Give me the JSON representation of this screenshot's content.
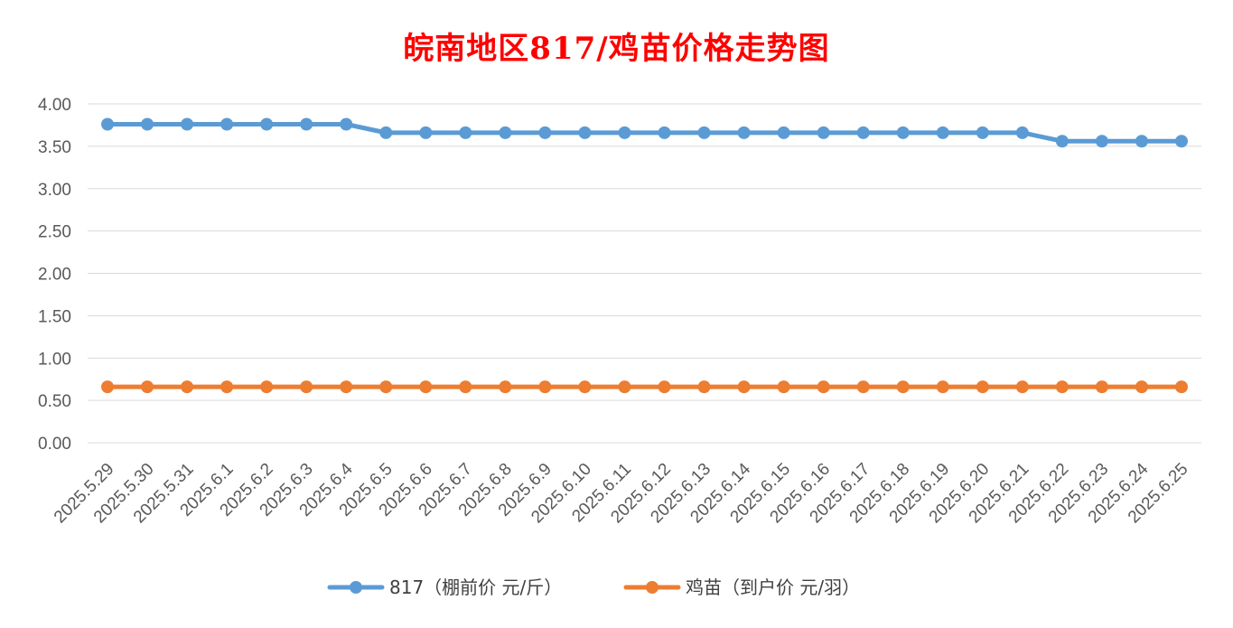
{
  "chart_data": {
    "type": "line",
    "title": "皖南地区817/鸡苗价格走势图",
    "title_color": "#FF0000",
    "categories": [
      "2025.5.29",
      "2025.5.30",
      "2025.5.31",
      "2025.6.1",
      "2025.6.2",
      "2025.6.3",
      "2025.6.4",
      "2025.6.5",
      "2025.6.6",
      "2025.6.7",
      "2025.6.8",
      "2025.6.9",
      "2025.6.10",
      "2025.6.11",
      "2025.6.12",
      "2025.6.13",
      "2025.6.14",
      "2025.6.15",
      "2025.6.16",
      "2025.6.17",
      "2025.6.18",
      "2025.6.19",
      "2025.6.20",
      "2025.6.21",
      "2025.6.22",
      "2025.6.23",
      "2025.6.24",
      "2025.6.25"
    ],
    "ylim": [
      0,
      4
    ],
    "yticks": [
      "0.00",
      "0.50",
      "1.00",
      "1.50",
      "2.00",
      "2.50",
      "3.00",
      "3.50",
      "4.00"
    ],
    "grid": true,
    "legend_position": "bottom",
    "series": [
      {
        "name": "817（棚前价 元/斤）",
        "color": "#5B9BD5",
        "values": [
          3.76,
          3.76,
          3.76,
          3.76,
          3.76,
          3.76,
          3.76,
          3.66,
          3.66,
          3.66,
          3.66,
          3.66,
          3.66,
          3.66,
          3.66,
          3.66,
          3.66,
          3.66,
          3.66,
          3.66,
          3.66,
          3.66,
          3.66,
          3.66,
          3.56,
          3.56,
          3.56,
          3.56
        ]
      },
      {
        "name": "鸡苗（到户价 元/羽）",
        "color": "#ED7D31",
        "values": [
          0.66,
          0.66,
          0.66,
          0.66,
          0.66,
          0.66,
          0.66,
          0.66,
          0.66,
          0.66,
          0.66,
          0.66,
          0.66,
          0.66,
          0.66,
          0.66,
          0.66,
          0.66,
          0.66,
          0.66,
          0.66,
          0.66,
          0.66,
          0.66,
          0.66,
          0.66,
          0.66,
          0.66
        ]
      }
    ]
  }
}
